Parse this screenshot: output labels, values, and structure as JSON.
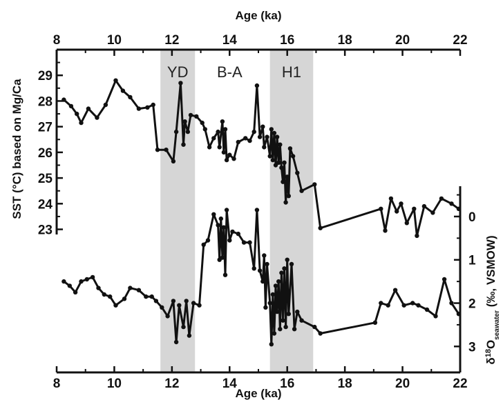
{
  "chart_data": {
    "type": "line",
    "title": "",
    "x_axis": {
      "label_top": "Age (ka)",
      "label_bottom": "Age (ka)",
      "xlim": [
        8,
        22
      ],
      "ticks": [
        8,
        10,
        12,
        14,
        16,
        18,
        20,
        22
      ]
    },
    "y_left": {
      "label": "SST (°C) based on Mg/Ca",
      "ylim": [
        22.8,
        30
      ],
      "ticks": [
        23,
        24,
        25,
        26,
        27,
        28,
        29
      ]
    },
    "y_right": {
      "label_prefix": "δ",
      "label_sup": "18",
      "label_main": "O",
      "label_sub": "seawater",
      "label_suffix": " (‰, VSMOW)",
      "ylim": [
        -0.7,
        3.6
      ],
      "inverted": true,
      "ticks": [
        0,
        1,
        2,
        3
      ]
    },
    "bands": [
      {
        "label": "YD",
        "x_start": 11.6,
        "x_end": 12.8,
        "color": "#d6d6d6"
      },
      {
        "label": "B-A",
        "x_start": null,
        "x_end": null,
        "label_x": 14.0,
        "color": ""
      },
      {
        "label": "H1",
        "x_start": 15.4,
        "x_end": 16.9,
        "color": "#d6d6d6"
      }
    ],
    "series": [
      {
        "axis": "left",
        "color": "#111111",
        "points": [
          [
            8.25,
            28.05
          ],
          [
            8.5,
            27.8
          ],
          [
            8.7,
            27.5
          ],
          [
            8.85,
            27.15
          ],
          [
            9.1,
            27.7
          ],
          [
            9.4,
            27.35
          ],
          [
            9.7,
            27.85
          ],
          [
            10.05,
            28.8
          ],
          [
            10.3,
            28.4
          ],
          [
            10.55,
            28.15
          ],
          [
            10.85,
            27.7
          ],
          [
            11.15,
            27.75
          ],
          [
            11.35,
            27.85
          ],
          [
            11.5,
            26.1
          ],
          [
            11.8,
            26.1
          ],
          [
            12.05,
            25.65
          ],
          [
            12.15,
            26.8
          ],
          [
            12.3,
            28.7
          ],
          [
            12.4,
            26.3
          ],
          [
            12.45,
            27.2
          ],
          [
            12.55,
            26.8
          ],
          [
            12.65,
            27.45
          ],
          [
            12.85,
            27.4
          ],
          [
            13.05,
            27.15
          ],
          [
            13.15,
            26.9
          ],
          [
            13.3,
            26.2
          ],
          [
            13.45,
            26.55
          ],
          [
            13.6,
            26.8
          ],
          [
            13.65,
            26.2
          ],
          [
            13.75,
            27.2
          ],
          [
            13.8,
            26.0
          ],
          [
            13.85,
            26.9
          ],
          [
            13.9,
            25.7
          ],
          [
            14.0,
            25.9
          ],
          [
            14.15,
            25.75
          ],
          [
            14.3,
            26.4
          ],
          [
            14.55,
            26.55
          ],
          [
            14.7,
            26.45
          ],
          [
            14.85,
            26.8
          ],
          [
            14.95,
            28.6
          ],
          [
            15.05,
            26.6
          ],
          [
            15.15,
            27.0
          ],
          [
            15.2,
            26.2
          ],
          [
            15.3,
            26.6
          ],
          [
            15.4,
            25.85
          ],
          [
            15.45,
            26.9
          ],
          [
            15.5,
            25.7
          ],
          [
            15.55,
            26.75
          ],
          [
            15.6,
            25.5
          ],
          [
            15.65,
            26.6
          ],
          [
            15.7,
            25.6
          ],
          [
            15.75,
            26.3
          ],
          [
            15.8,
            25.4
          ],
          [
            15.85,
            24.85
          ],
          [
            15.9,
            25.6
          ],
          [
            15.95,
            24.05
          ],
          [
            16.0,
            25.05
          ],
          [
            16.05,
            24.3
          ],
          [
            16.1,
            26.15
          ],
          [
            16.2,
            25.85
          ],
          [
            16.35,
            25.2
          ],
          [
            16.5,
            24.5
          ],
          [
            16.95,
            24.75
          ],
          [
            17.15,
            23.05
          ],
          [
            19.25,
            23.8
          ],
          [
            19.4,
            22.95
          ],
          [
            19.6,
            24.2
          ],
          [
            19.8,
            23.7
          ],
          [
            19.95,
            24.0
          ],
          [
            20.15,
            23.25
          ],
          [
            20.4,
            23.8
          ],
          [
            20.5,
            22.75
          ],
          [
            20.75,
            23.9
          ],
          [
            21.05,
            23.65
          ],
          [
            21.35,
            24.2
          ],
          [
            21.7,
            24.0
          ],
          [
            21.95,
            23.8
          ]
        ]
      },
      {
        "axis": "right",
        "color": "#111111",
        "points": [
          [
            8.25,
            1.5
          ],
          [
            8.45,
            1.6
          ],
          [
            8.65,
            1.75
          ],
          [
            8.85,
            1.5
          ],
          [
            9.05,
            1.45
          ],
          [
            9.25,
            1.4
          ],
          [
            9.45,
            1.65
          ],
          [
            9.65,
            1.8
          ],
          [
            9.85,
            1.85
          ],
          [
            10.05,
            2.05
          ],
          [
            10.35,
            1.9
          ],
          [
            10.55,
            1.65
          ],
          [
            10.85,
            1.7
          ],
          [
            11.1,
            1.85
          ],
          [
            11.3,
            1.85
          ],
          [
            11.45,
            1.95
          ],
          [
            11.65,
            2.1
          ],
          [
            11.85,
            2.3
          ],
          [
            12.05,
            1.95
          ],
          [
            12.15,
            2.9
          ],
          [
            12.25,
            2.05
          ],
          [
            12.4,
            2.55
          ],
          [
            12.5,
            1.95
          ],
          [
            12.6,
            2.75
          ],
          [
            12.75,
            2.0
          ],
          [
            12.95,
            2.05
          ],
          [
            13.1,
            0.65
          ],
          [
            13.25,
            0.55
          ],
          [
            13.45,
            -0.05
          ],
          [
            13.6,
            0.2
          ],
          [
            13.65,
            1.0
          ],
          [
            13.7,
            0.05
          ],
          [
            13.75,
            0.95
          ],
          [
            13.8,
            0.25
          ],
          [
            13.85,
            1.35
          ],
          [
            13.9,
            -0.15
          ],
          [
            14.0,
            0.55
          ],
          [
            14.1,
            0.35
          ],
          [
            14.3,
            0.4
          ],
          [
            14.5,
            0.6
          ],
          [
            14.7,
            0.6
          ],
          [
            14.85,
            1.2
          ],
          [
            14.95,
            -0.15
          ],
          [
            15.05,
            1.25
          ],
          [
            15.15,
            1.5
          ],
          [
            15.2,
            0.9
          ],
          [
            15.25,
            2.1
          ],
          [
            15.3,
            1.1
          ],
          [
            15.4,
            2.0
          ],
          [
            15.45,
            2.95
          ],
          [
            15.5,
            1.8
          ],
          [
            15.55,
            2.7
          ],
          [
            15.6,
            1.6
          ],
          [
            15.65,
            2.2
          ],
          [
            15.7,
            1.5
          ],
          [
            15.75,
            2.6
          ],
          [
            15.8,
            1.3
          ],
          [
            15.85,
            2.4
          ],
          [
            15.9,
            1.2
          ],
          [
            15.95,
            2.55
          ],
          [
            16.0,
            1.0
          ],
          [
            16.05,
            2.25
          ],
          [
            16.15,
            1.1
          ],
          [
            16.25,
            2.6
          ],
          [
            16.35,
            2.2
          ],
          [
            16.5,
            2.4
          ],
          [
            16.95,
            2.55
          ],
          [
            17.15,
            2.7
          ],
          [
            19.05,
            2.45
          ],
          [
            19.25,
            2.0
          ],
          [
            19.5,
            2.05
          ],
          [
            19.75,
            1.7
          ],
          [
            20.05,
            2.05
          ],
          [
            20.35,
            2.0
          ],
          [
            20.55,
            2.05
          ],
          [
            20.85,
            2.15
          ],
          [
            21.15,
            2.3
          ],
          [
            21.45,
            1.45
          ],
          [
            21.7,
            2.0
          ],
          [
            21.95,
            2.25
          ]
        ]
      }
    ],
    "legend": "none",
    "grid": false
  }
}
